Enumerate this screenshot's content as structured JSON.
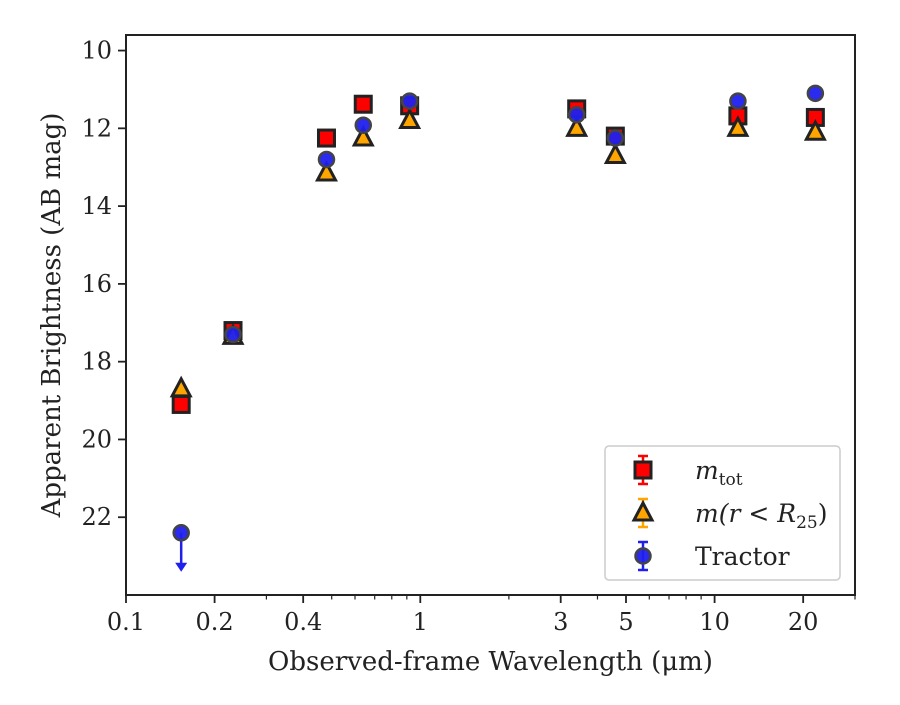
{
  "chart_data": {
    "type": "scatter",
    "xlabel": "Observed-frame Wavelength (μm)",
    "ylabel": "Apparent Brightness (AB mag)",
    "x_scale": "log",
    "xlim": [
      0.1,
      30
    ],
    "ylim": [
      24,
      9.6
    ],
    "y_inverted": true,
    "x_ticks": [
      0.1,
      0.2,
      0.4,
      1,
      3,
      5,
      10,
      20
    ],
    "x_tick_labels": [
      "0.1",
      "0.2",
      "0.4",
      "1",
      "3",
      "5",
      "10",
      "20"
    ],
    "y_ticks": [
      10,
      12,
      14,
      16,
      18,
      20,
      22
    ],
    "y_tick_labels": [
      "10",
      "12",
      "14",
      "16",
      "18",
      "20",
      "22"
    ],
    "grid": false,
    "legend_position": "bottom-right",
    "series": [
      {
        "name_parts": [
          "m",
          "tot"
        ],
        "marker": "square",
        "color": "#ff0000",
        "edge_color": "#222222",
        "points": [
          {
            "x": 0.154,
            "y": 19.1
          },
          {
            "x": 0.231,
            "y": 17.2
          },
          {
            "x": 0.48,
            "y": 12.25
          },
          {
            "x": 0.64,
            "y": 11.38
          },
          {
            "x": 0.92,
            "y": 11.42
          },
          {
            "x": 3.4,
            "y": 11.5
          },
          {
            "x": 4.6,
            "y": 12.2
          },
          {
            "x": 12.0,
            "y": 11.68
          },
          {
            "x": 22.0,
            "y": 11.72
          }
        ]
      },
      {
        "name_parts": [
          "m(r < R",
          "25",
          ")"
        ],
        "marker": "triangle",
        "color": "#ffa500",
        "edge_color": "#222222",
        "points": [
          {
            "x": 0.154,
            "y": 18.7
          },
          {
            "x": 0.231,
            "y": 17.35
          },
          {
            "x": 0.48,
            "y": 13.15
          },
          {
            "x": 0.64,
            "y": 12.25
          },
          {
            "x": 0.92,
            "y": 11.8
          },
          {
            "x": 3.4,
            "y": 12.0
          },
          {
            "x": 4.6,
            "y": 12.7
          },
          {
            "x": 12.0,
            "y": 12.0
          },
          {
            "x": 22.0,
            "y": 12.1
          }
        ]
      },
      {
        "name": "Tractor",
        "marker": "circle",
        "color": "#2020ee",
        "edge_color": "#444444",
        "points": [
          {
            "x": 0.154,
            "y": 22.4,
            "upper_limit": true
          },
          {
            "x": 0.231,
            "y": 17.3
          },
          {
            "x": 0.48,
            "y": 12.8
          },
          {
            "x": 0.64,
            "y": 11.92
          },
          {
            "x": 0.92,
            "y": 11.3
          },
          {
            "x": 3.4,
            "y": 11.65
          },
          {
            "x": 4.6,
            "y": 12.25
          },
          {
            "x": 12.0,
            "y": 11.3
          },
          {
            "x": 22.0,
            "y": 11.1
          }
        ]
      }
    ]
  }
}
